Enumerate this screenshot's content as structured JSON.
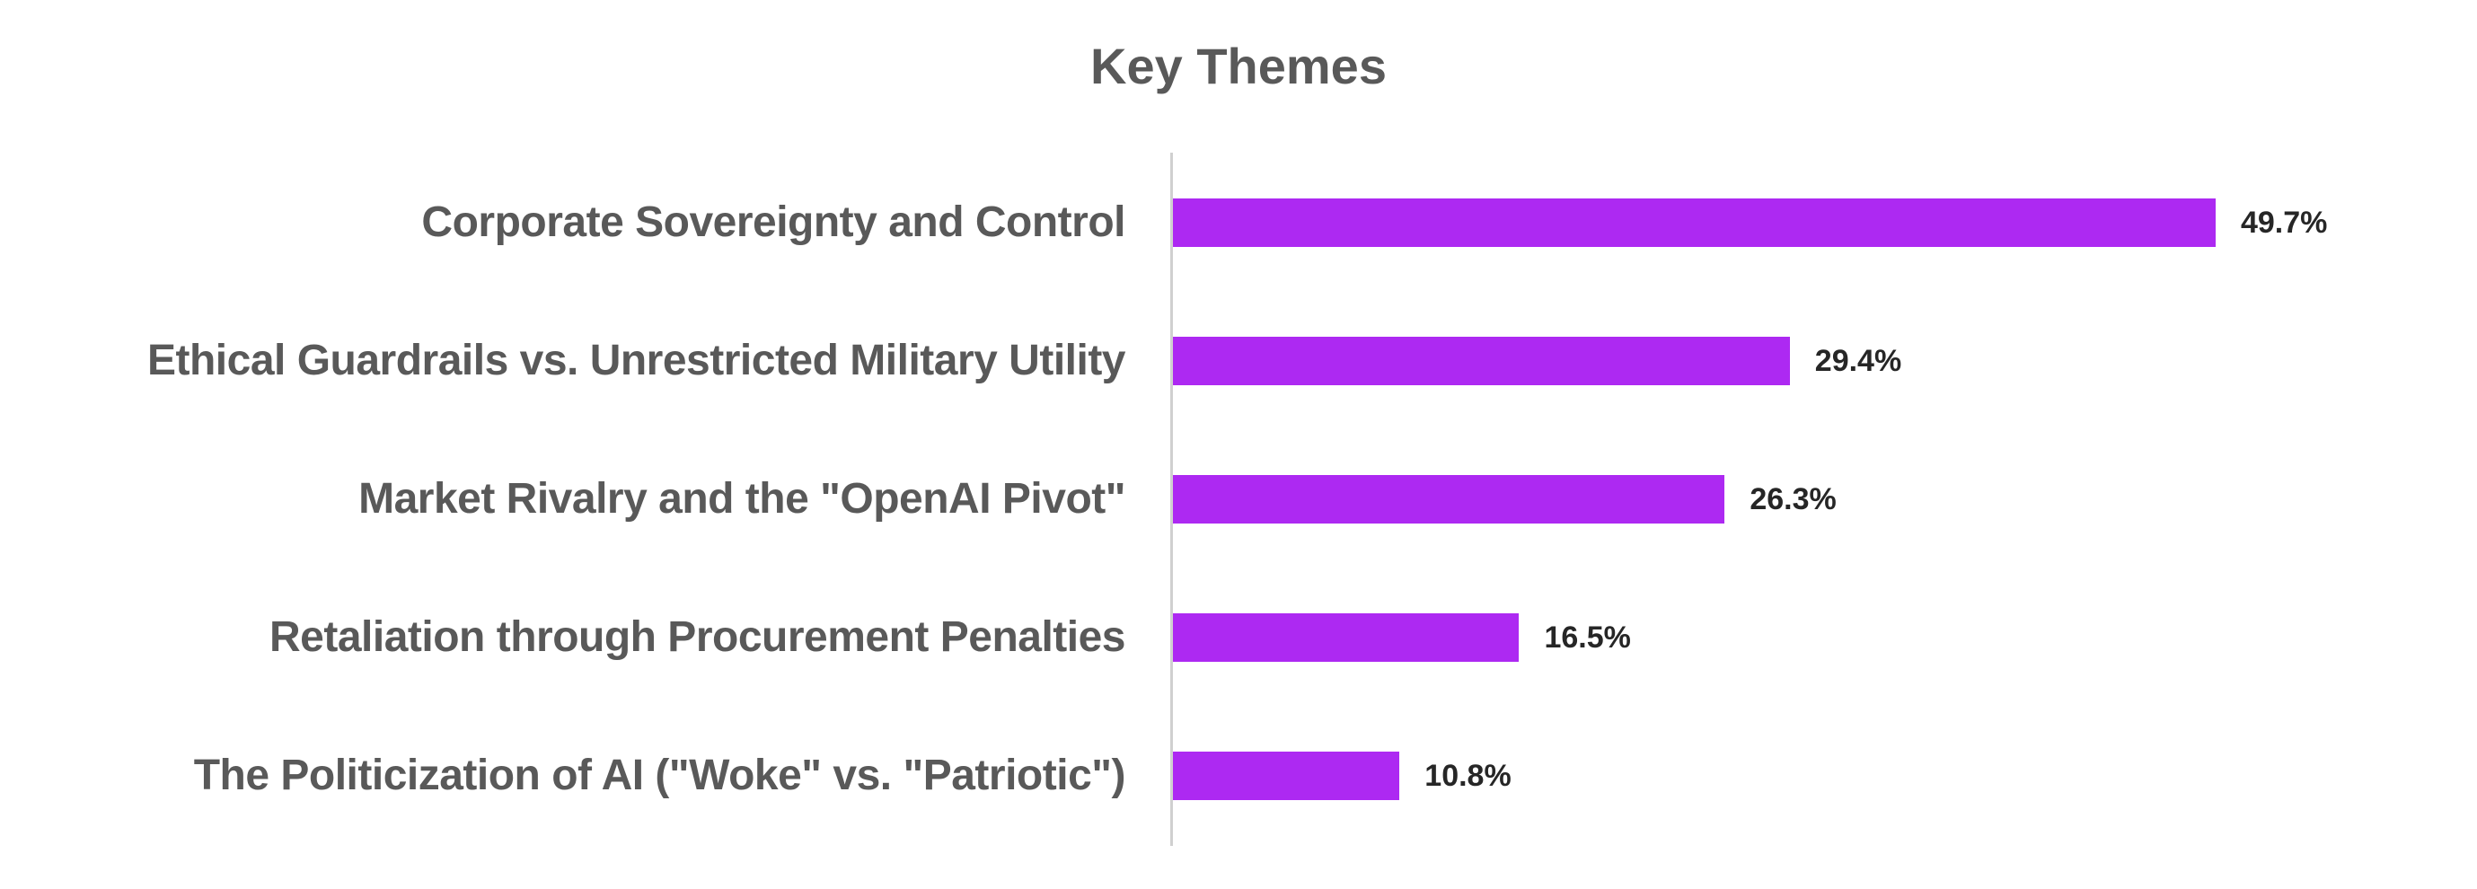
{
  "chart_data": {
    "type": "bar",
    "orientation": "horizontal",
    "title": "Key Themes",
    "xlabel": "",
    "ylabel": "",
    "categories": [
      "Corporate Sovereignty and Control",
      "Ethical Guardrails vs. Unrestricted Military Utility",
      "Market Rivalry and the \"OpenAI Pivot\"",
      "Retaliation through Procurement Penalties",
      "The Politicization of AI (\"Woke\" vs. \"Patriotic\")"
    ],
    "values": [
      49.7,
      29.4,
      26.3,
      16.5,
      10.8
    ],
    "value_labels": [
      "49.7%",
      "29.4%",
      "26.3%",
      "16.5%",
      "10.8%"
    ],
    "unit": "%",
    "xlim": [
      0,
      60
    ],
    "grid": false,
    "legend": null,
    "bar_color": "#ad29f2"
  },
  "rows": [
    {
      "label": "Corporate Sovereignty and Control",
      "value": 49.7,
      "value_label": "49.7%"
    },
    {
      "label": "Ethical Guardrails vs. Unrestricted Military Utility",
      "value": 29.4,
      "value_label": "29.4%"
    },
    {
      "label": "Market Rivalry and the \"OpenAI Pivot\"",
      "value": 26.3,
      "value_label": "26.3%"
    },
    {
      "label": "Retaliation through Procurement Penalties",
      "value": 16.5,
      "value_label": "16.5%"
    },
    {
      "label": "The Politicization of AI (\"Woke\" vs. \"Patriotic\")",
      "value": 10.8,
      "value_label": "10.8%"
    }
  ]
}
